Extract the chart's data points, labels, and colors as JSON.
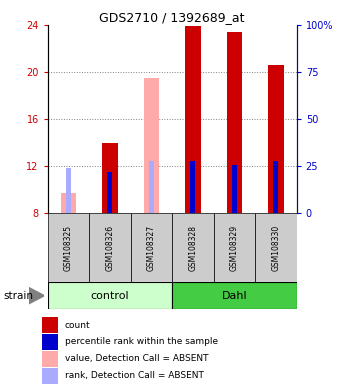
{
  "title": "GDS2710 / 1392689_at",
  "samples": [
    "GSM108325",
    "GSM108326",
    "GSM108327",
    "GSM108328",
    "GSM108329",
    "GSM108330"
  ],
  "ylim_left": [
    8,
    24
  ],
  "ylim_right": [
    0,
    100
  ],
  "yticks_left": [
    8,
    12,
    16,
    20,
    24
  ],
  "ytick_labels_left": [
    "8",
    "12",
    "16",
    "20",
    "24"
  ],
  "yticks_right": [
    0,
    25,
    50,
    75,
    100
  ],
  "ytick_labels_right": [
    "0",
    "25",
    "50",
    "75",
    "100%"
  ],
  "bar_bottom": 8,
  "absent_value_bars": {
    "GSM108325": 9.7,
    "GSM108327": 19.5
  },
  "absent_rank_bars": {
    "GSM108325": 11.8,
    "GSM108327": 12.4
  },
  "present_value_bars": {
    "GSM108326": 14.0,
    "GSM108328": 23.9,
    "GSM108329": 23.4,
    "GSM108330": 20.6
  },
  "present_rank_bars": {
    "GSM108326": 11.5,
    "GSM108328": 12.4,
    "GSM108329": 12.1,
    "GSM108330": 12.4
  },
  "color_red": "#cc0000",
  "color_blue": "#0000cc",
  "color_pink": "#ffaaaa",
  "color_lightblue": "#aaaaff",
  "color_control_bg": "#ccffcc",
  "color_dahl_bg": "#44cc44",
  "color_sample_bg": "#cccccc",
  "bar_width": 0.38,
  "rank_bar_width": 0.12,
  "group_label_control": "control",
  "group_label_dahl": "Dahl",
  "strain_label": "strain",
  "legend_items": [
    {
      "color": "#cc0000",
      "label": "count"
    },
    {
      "color": "#0000cc",
      "label": "percentile rank within the sample"
    },
    {
      "color": "#ffaaaa",
      "label": "value, Detection Call = ABSENT"
    },
    {
      "color": "#aaaaff",
      "label": "rank, Detection Call = ABSENT"
    }
  ]
}
